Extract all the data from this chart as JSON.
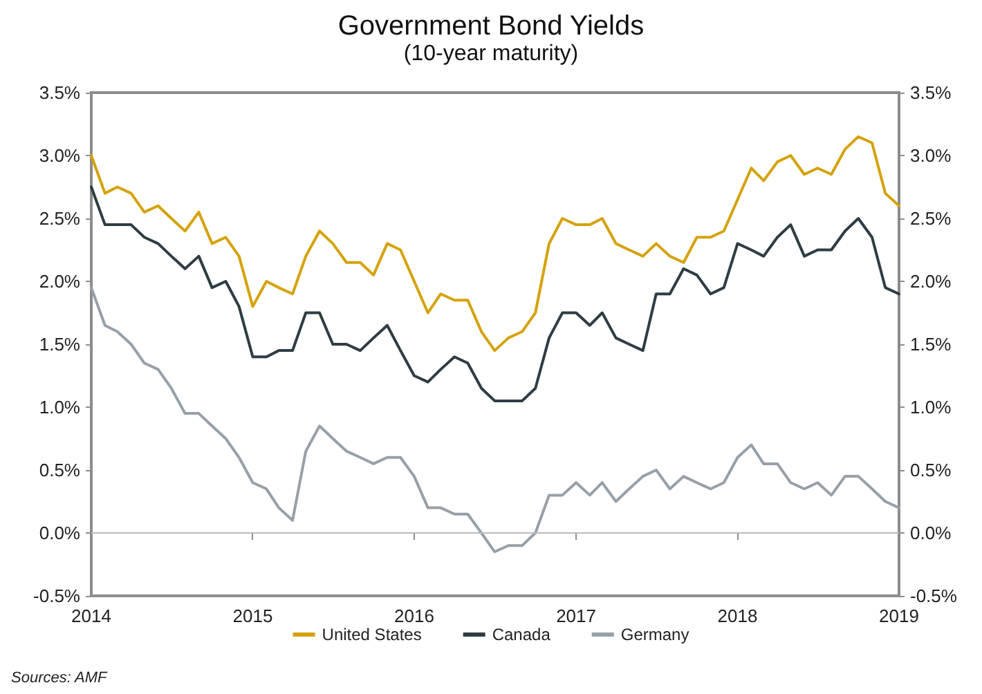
{
  "chart_data": {
    "type": "line",
    "title": "Government Bond Yields",
    "subtitle": "(10-year maturity)",
    "x": [
      "2014-01",
      "2014-02",
      "2014-03",
      "2014-04",
      "2014-05",
      "2014-06",
      "2014-07",
      "2014-08",
      "2014-09",
      "2014-10",
      "2014-11",
      "2014-12",
      "2015-01",
      "2015-02",
      "2015-03",
      "2015-04",
      "2015-05",
      "2015-06",
      "2015-07",
      "2015-08",
      "2015-09",
      "2015-10",
      "2015-11",
      "2015-12",
      "2016-01",
      "2016-02",
      "2016-03",
      "2016-04",
      "2016-05",
      "2016-06",
      "2016-07",
      "2016-08",
      "2016-09",
      "2016-10",
      "2016-11",
      "2016-12",
      "2017-01",
      "2017-02",
      "2017-03",
      "2017-04",
      "2017-05",
      "2017-06",
      "2017-07",
      "2017-08",
      "2017-09",
      "2017-10",
      "2017-11",
      "2017-12",
      "2018-01",
      "2018-02",
      "2018-03",
      "2018-04",
      "2018-05",
      "2018-06",
      "2018-07",
      "2018-08",
      "2018-09",
      "2018-10",
      "2018-11",
      "2018-12",
      "2019-01"
    ],
    "series": [
      {
        "name": "United States",
        "color": "#d4a20a",
        "values": [
          3.0,
          2.7,
          2.75,
          2.7,
          2.55,
          2.6,
          2.5,
          2.4,
          2.55,
          2.3,
          2.35,
          2.2,
          1.8,
          2.0,
          1.95,
          1.9,
          2.2,
          2.4,
          2.3,
          2.15,
          2.15,
          2.05,
          2.3,
          2.25,
          2.0,
          1.75,
          1.9,
          1.85,
          1.85,
          1.6,
          1.45,
          1.55,
          1.6,
          1.75,
          2.3,
          2.5,
          2.45,
          2.45,
          2.5,
          2.3,
          2.25,
          2.2,
          2.3,
          2.2,
          2.15,
          2.35,
          2.35,
          2.4,
          2.65,
          2.9,
          2.8,
          2.95,
          3.0,
          2.85,
          2.9,
          2.85,
          3.05,
          3.15,
          3.1,
          2.7,
          2.6
        ]
      },
      {
        "name": "Canada",
        "color": "#2f3c44",
        "values": [
          2.75,
          2.45,
          2.45,
          2.45,
          2.35,
          2.3,
          2.2,
          2.1,
          2.2,
          1.95,
          2.0,
          1.8,
          1.4,
          1.4,
          1.45,
          1.45,
          1.75,
          1.75,
          1.5,
          1.5,
          1.45,
          1.55,
          1.65,
          1.45,
          1.25,
          1.2,
          1.3,
          1.4,
          1.35,
          1.15,
          1.05,
          1.05,
          1.05,
          1.15,
          1.55,
          1.75,
          1.75,
          1.65,
          1.75,
          1.55,
          1.5,
          1.45,
          1.9,
          1.9,
          2.1,
          2.05,
          1.9,
          1.95,
          2.3,
          2.25,
          2.2,
          2.35,
          2.45,
          2.2,
          2.25,
          2.25,
          2.4,
          2.5,
          2.35,
          1.95,
          1.9
        ]
      },
      {
        "name": "Germany",
        "color": "#97a0a8",
        "values": [
          1.95,
          1.65,
          1.6,
          1.5,
          1.35,
          1.3,
          1.15,
          0.95,
          0.95,
          0.85,
          0.75,
          0.6,
          0.4,
          0.35,
          0.2,
          0.1,
          0.65,
          0.85,
          0.75,
          0.65,
          0.6,
          0.55,
          0.6,
          0.6,
          0.45,
          0.2,
          0.2,
          0.15,
          0.15,
          0.0,
          -0.15,
          -0.1,
          -0.1,
          0.0,
          0.3,
          0.3,
          0.4,
          0.3,
          0.4,
          0.25,
          0.35,
          0.45,
          0.5,
          0.35,
          0.45,
          0.4,
          0.35,
          0.4,
          0.6,
          0.7,
          0.55,
          0.55,
          0.4,
          0.35,
          0.4,
          0.3,
          0.45,
          0.45,
          0.35,
          0.25,
          0.2
        ]
      }
    ],
    "xlim": [
      "2014",
      "2019"
    ],
    "xticks": [
      "2014",
      "2015",
      "2016",
      "2017",
      "2018",
      "2019"
    ],
    "ylim": [
      -0.5,
      3.5
    ],
    "yticks": [
      {
        "value": -0.5,
        "label": "-0.5%"
      },
      {
        "value": 0,
        "label": "0.0%"
      },
      {
        "value": 0.5,
        "label": "0.5%"
      },
      {
        "value": 1,
        "label": "1.0%"
      },
      {
        "value": 1.5,
        "label": "1.5%"
      },
      {
        "value": 2,
        "label": "2.0%"
      },
      {
        "value": 2.5,
        "label": "2.5%"
      },
      {
        "value": 3,
        "label": "3.0%"
      },
      {
        "value": 3.5,
        "label": "3.5%"
      }
    ],
    "y2lim": [
      -0.5,
      3.5
    ],
    "y2ticks": [
      {
        "value": -0.5,
        "label": "-0.5%"
      },
      {
        "value": 0,
        "label": "0.0%"
      },
      {
        "value": 0.5,
        "label": "0.5%"
      },
      {
        "value": 1,
        "label": "1.0%"
      },
      {
        "value": 1.5,
        "label": "1.5%"
      },
      {
        "value": 2,
        "label": "2.0%"
      },
      {
        "value": 2.5,
        "label": "2.5%"
      },
      {
        "value": 3,
        "label": "3.0%"
      },
      {
        "value": 3.5,
        "label": "3.5%"
      }
    ],
    "ref_lines": [
      {
        "axis": "y",
        "value": 0,
        "color": "#bbbbbb"
      }
    ],
    "grid": false,
    "legend": "bottom",
    "marker": "none",
    "line_style": "solid",
    "annotations": [
      "Sources: AMF"
    ]
  }
}
